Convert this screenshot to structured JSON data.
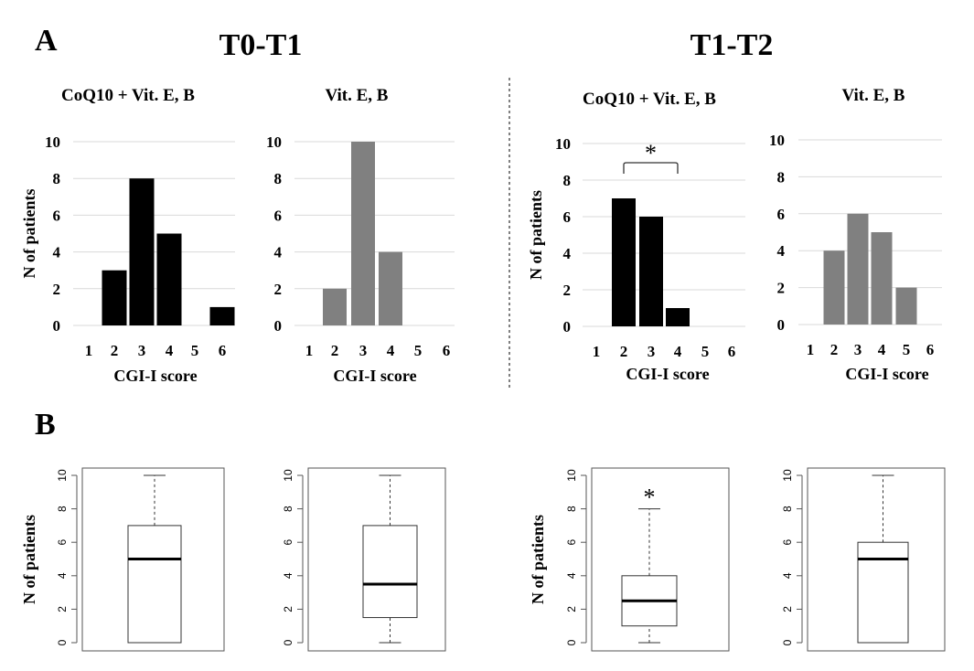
{
  "panel_labels": {
    "a": "A",
    "b": "B"
  },
  "period_titles": [
    "T0-T1",
    "T1-T2"
  ],
  "significance_mark": "*",
  "chart_data": [
    {
      "type": "bar",
      "title": "CoQ10 + Vit. E, B",
      "xlabel": "CGI-I score",
      "ylabel": "N of patients",
      "categories": [
        "1",
        "2",
        "3",
        "4",
        "5",
        "6"
      ],
      "values": [
        0,
        3,
        8,
        5,
        0,
        1
      ],
      "ylim": [
        0,
        10
      ],
      "yticks": [
        "0",
        "2",
        "4",
        "6",
        "8",
        "10"
      ],
      "grid": true,
      "color": "#000000"
    },
    {
      "type": "bar",
      "title": "Vit. E, B",
      "xlabel": "CGI-I score",
      "ylabel": "",
      "categories": [
        "1",
        "2",
        "3",
        "4",
        "5",
        "6"
      ],
      "values": [
        0,
        2,
        10,
        4,
        0,
        0
      ],
      "ylim": [
        0,
        10
      ],
      "yticks": [
        "0",
        "2",
        "4",
        "6",
        "8",
        "10"
      ],
      "grid": true,
      "color": "#808080"
    },
    {
      "type": "bar",
      "title": "CoQ10 + Vit. E, B",
      "xlabel": "CGI-I score",
      "ylabel": "N of patients",
      "categories": [
        "1",
        "2",
        "3",
        "4",
        "5",
        "6"
      ],
      "values": [
        0,
        7,
        6,
        1,
        0,
        0
      ],
      "ylim": [
        0,
        10
      ],
      "yticks": [
        "0",
        "2",
        "4",
        "6",
        "8",
        "10"
      ],
      "grid": true,
      "color": "#000000",
      "annotation": {
        "text": "*",
        "bracket": [
          "2",
          "4"
        ]
      }
    },
    {
      "type": "bar",
      "title": "Vit. E, B",
      "xlabel": "CGI-I score",
      "ylabel": "",
      "categories": [
        "1",
        "2",
        "3",
        "4",
        "5",
        "6"
      ],
      "values": [
        0,
        4,
        6,
        5,
        2,
        0
      ],
      "ylim": [
        0,
        10
      ],
      "yticks": [
        "0",
        "2",
        "4",
        "6",
        "8",
        "10"
      ],
      "grid": true,
      "color": "#808080"
    },
    {
      "type": "box",
      "ylabel": "N of patients",
      "ylim": [
        0,
        10
      ],
      "yticks": [
        "0",
        "2",
        "4",
        "6",
        "8",
        "10"
      ],
      "min": 0,
      "q1": 0,
      "median": 5,
      "q3": 7,
      "max": 10
    },
    {
      "type": "box",
      "ylabel": "",
      "ylim": [
        0,
        10
      ],
      "yticks": [
        "0",
        "2",
        "4",
        "6",
        "8",
        "10"
      ],
      "min": 0,
      "q1": 1.5,
      "median": 3.5,
      "q3": 7,
      "max": 10
    },
    {
      "type": "box",
      "ylabel": "N of patients",
      "ylim": [
        0,
        10
      ],
      "yticks": [
        "0",
        "2",
        "4",
        "6",
        "8",
        "10"
      ],
      "min": 0,
      "q1": 1,
      "median": 2.5,
      "q3": 4,
      "max": 8,
      "annotation": {
        "text": "*"
      }
    },
    {
      "type": "box",
      "ylabel": "",
      "ylim": [
        0,
        10
      ],
      "yticks": [
        "0",
        "2",
        "4",
        "6",
        "8",
        "10"
      ],
      "min": 0,
      "q1": 0,
      "median": 5,
      "q3": 6,
      "max": 10
    }
  ]
}
